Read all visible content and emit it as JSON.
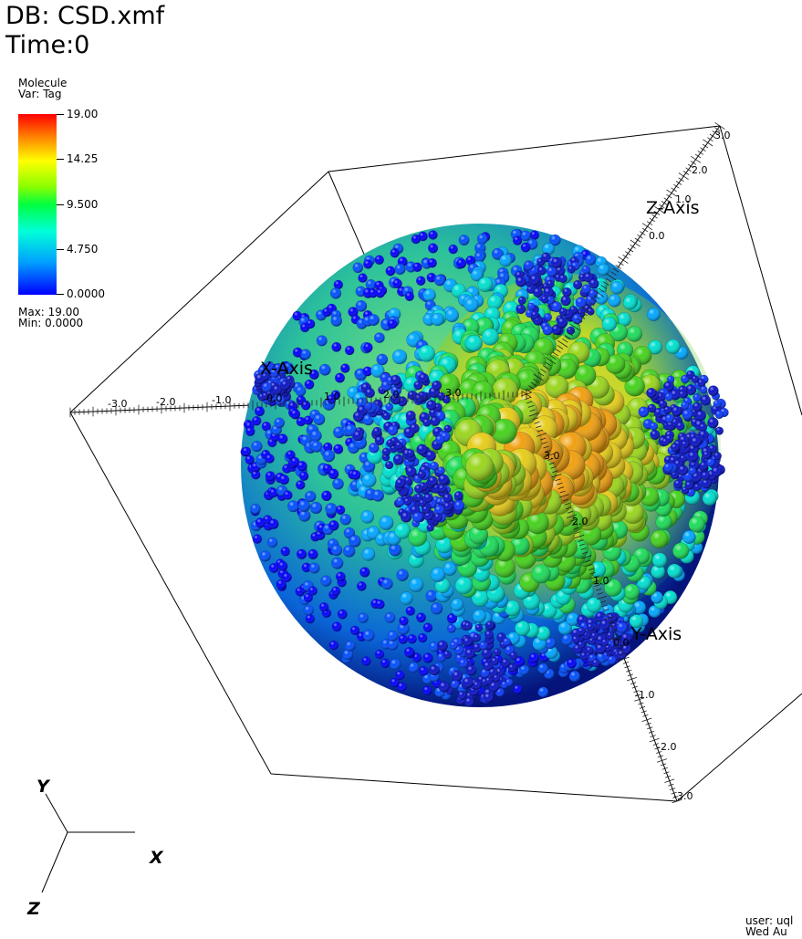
{
  "header": {
    "database": "DB: CSD.xmf",
    "time": "Time:0"
  },
  "legend": {
    "title": "Molecule",
    "variable": "Var: Tag",
    "ticks": [
      "19.00",
      "14.25",
      "9.500",
      "4.750",
      "0.0000"
    ],
    "max": "Max:  19.00",
    "min": "Min:  0.0000",
    "colors": [
      "#ff0000",
      "#ffff00",
      "#00ff40",
      "#00ffff",
      "#0000ff"
    ]
  },
  "axes": {
    "x_label": "X-Axis",
    "y_label": "Y-Axis",
    "z_label": "Z-Axis",
    "x_ticks": [
      "-3.0",
      "-2.0",
      "-1.0",
      "0.0",
      "1.0",
      "2.0",
      "3.0"
    ],
    "z_ticks": [
      "0.0",
      "1.0",
      "2.0",
      "3.0"
    ],
    "y_ticks": [
      "3.0",
      "2.0",
      "1.0",
      "0.0",
      "-1.0",
      "-2.0",
      "-3.0"
    ]
  },
  "triad": {
    "x": "X",
    "y": "Y",
    "z": "Z"
  },
  "footer": {
    "user": "user: uql",
    "date": "Wed Au"
  }
}
